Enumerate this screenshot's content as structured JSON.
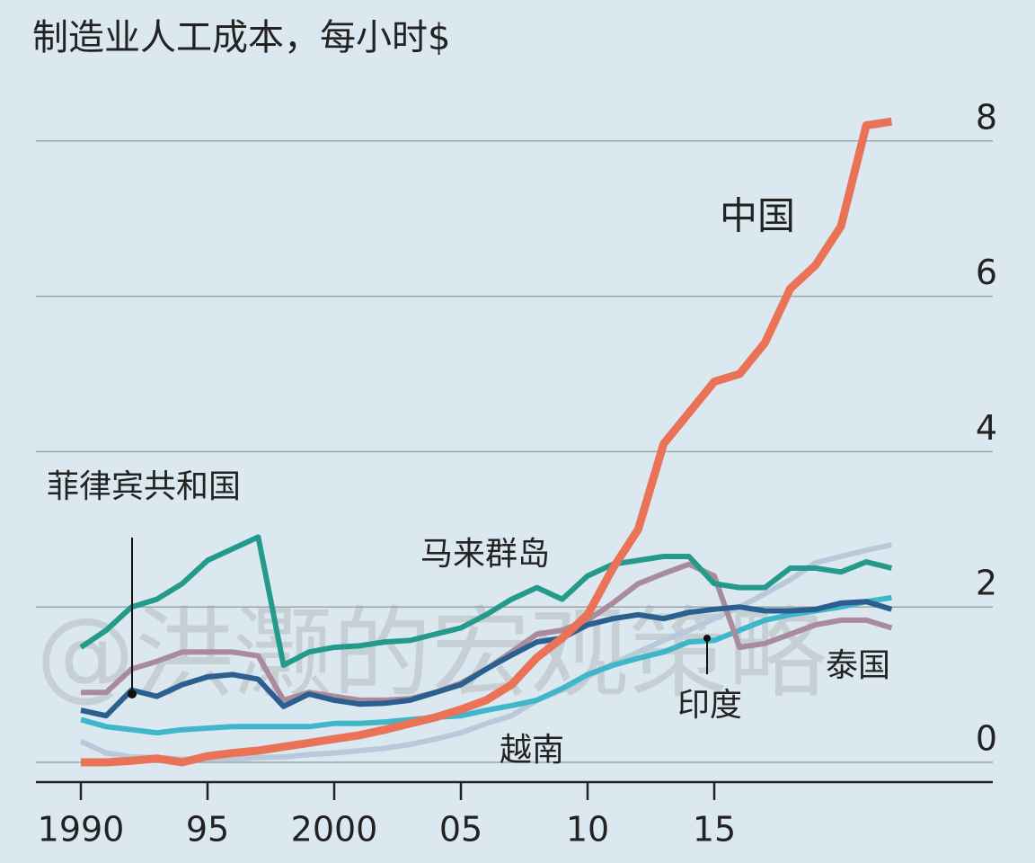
{
  "chart_data": {
    "type": "line",
    "title": "制造业人工成本，每小时$",
    "x": [
      1990,
      1991,
      1992,
      1993,
      1994,
      1995,
      1996,
      1997,
      1998,
      1999,
      2000,
      2001,
      2002,
      2003,
      2004,
      2005,
      2006,
      2007,
      2008,
      2009,
      2010,
      2011,
      2012,
      2013,
      2014,
      2015,
      2016,
      2017,
      2018,
      2019,
      2020,
      2021,
      2022
    ],
    "series": [
      {
        "name": "越南",
        "color": "#b9c9d9",
        "values": [
          0.27,
          0.12,
          0.07,
          0.06,
          0.04,
          0.04,
          0.04,
          0.06,
          0.07,
          0.1,
          0.12,
          0.15,
          0.18,
          0.23,
          0.3,
          0.38,
          0.5,
          0.6,
          0.8,
          0.93,
          1.1,
          1.27,
          1.42,
          1.57,
          1.7,
          1.85,
          2.0,
          2.17,
          2.35,
          2.57,
          2.65,
          2.73,
          2.8
        ]
      },
      {
        "name": "印度",
        "color": "#3fb6c9",
        "values": [
          0.55,
          0.46,
          0.42,
          0.38,
          0.42,
          0.44,
          0.46,
          0.46,
          0.46,
          0.46,
          0.5,
          0.5,
          0.52,
          0.55,
          0.58,
          0.6,
          0.67,
          0.73,
          0.8,
          0.95,
          1.13,
          1.25,
          1.34,
          1.42,
          1.55,
          1.57,
          1.7,
          1.83,
          1.9,
          1.95,
          2.0,
          2.07,
          2.12
        ]
      },
      {
        "name": "泰国",
        "color": "#a98b9b",
        "values": [
          0.9,
          0.9,
          1.2,
          1.3,
          1.42,
          1.42,
          1.42,
          1.37,
          0.8,
          0.9,
          0.85,
          0.8,
          0.8,
          0.82,
          0.9,
          1.02,
          1.2,
          1.42,
          1.65,
          1.7,
          1.83,
          2.05,
          2.3,
          2.43,
          2.55,
          2.4,
          1.48,
          1.53,
          1.65,
          1.77,
          1.83,
          1.83,
          1.73
        ]
      },
      {
        "name": "马来群岛",
        "color": "#249a8c",
        "values": [
          1.48,
          1.7,
          2.0,
          2.1,
          2.3,
          2.6,
          2.75,
          2.9,
          1.25,
          1.42,
          1.48,
          1.5,
          1.55,
          1.57,
          1.65,
          1.73,
          1.9,
          2.1,
          2.25,
          2.1,
          2.4,
          2.55,
          2.6,
          2.65,
          2.65,
          2.3,
          2.25,
          2.25,
          2.5,
          2.5,
          2.45,
          2.58,
          2.5
        ]
      },
      {
        "name": "菲律宾共和国",
        "color": "#2a5f90",
        "values": [
          0.67,
          0.6,
          0.93,
          0.85,
          1.0,
          1.1,
          1.13,
          1.07,
          0.72,
          0.88,
          0.8,
          0.75,
          0.76,
          0.8,
          0.9,
          1.0,
          1.2,
          1.38,
          1.55,
          1.6,
          1.77,
          1.85,
          1.9,
          1.85,
          1.93,
          1.97,
          2.0,
          1.95,
          1.95,
          1.97,
          2.05,
          2.07,
          1.97
        ]
      },
      {
        "name": "中国",
        "color": "#ea7257",
        "values": [
          0.0,
          0.0,
          0.02,
          0.05,
          0.0,
          0.08,
          0.12,
          0.15,
          0.2,
          0.25,
          0.3,
          0.35,
          0.42,
          0.5,
          0.58,
          0.68,
          0.8,
          1.0,
          1.35,
          1.6,
          1.9,
          2.5,
          3.0,
          4.1,
          4.5,
          4.9,
          5.0,
          5.4,
          6.1,
          6.4,
          6.9,
          8.2,
          8.25
        ]
      }
    ],
    "xlim": [
      1988,
      2026
    ],
    "xticks": [
      1990,
      {
        "value": 1995,
        "label": "95"
      },
      2000,
      {
        "value": 2005,
        "label": "05"
      },
      {
        "value": 2010,
        "label": "10"
      },
      {
        "value": 2015,
        "label": "15"
      }
    ],
    "ylim": [
      0,
      8.5
    ],
    "yticks": [
      0,
      2,
      4,
      6,
      8
    ],
    "grid": true,
    "watermark": "@洪灏的宏观策略"
  }
}
